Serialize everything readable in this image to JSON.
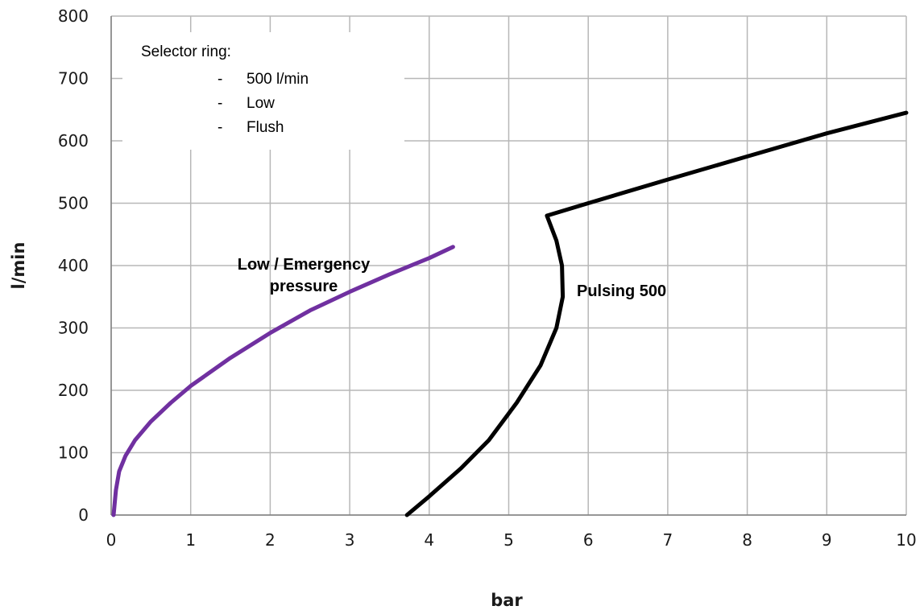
{
  "chart_data": {
    "type": "line",
    "xlabel": "bar",
    "ylabel": "l/min",
    "xlim": [
      0,
      10
    ],
    "ylim": [
      0,
      800
    ],
    "x_ticks": [
      "0",
      "1",
      "2",
      "3",
      "4",
      "5",
      "6",
      "7",
      "8",
      "9",
      "10"
    ],
    "y_ticks": [
      "0",
      "100",
      "200",
      "300",
      "400",
      "500",
      "600",
      "700",
      "800"
    ],
    "grid": true,
    "series": [
      {
        "name": "Low / Emergency pressure",
        "color": "#7030a0",
        "points": [
          [
            0.03,
            0
          ],
          [
            0.06,
            40
          ],
          [
            0.1,
            70
          ],
          [
            0.18,
            95
          ],
          [
            0.3,
            120
          ],
          [
            0.5,
            150
          ],
          [
            0.75,
            180
          ],
          [
            1.0,
            207
          ],
          [
            1.5,
            252
          ],
          [
            2.0,
            292
          ],
          [
            2.5,
            328
          ],
          [
            3.0,
            358
          ],
          [
            3.5,
            386
          ],
          [
            4.0,
            412
          ],
          [
            4.3,
            430
          ]
        ]
      },
      {
        "name": "Pulsing 500",
        "color": "#000000",
        "points": [
          [
            3.72,
            0
          ],
          [
            4.0,
            30
          ],
          [
            4.4,
            75
          ],
          [
            4.75,
            120
          ],
          [
            5.1,
            180
          ],
          [
            5.4,
            240
          ],
          [
            5.6,
            300
          ],
          [
            5.68,
            350
          ],
          [
            5.67,
            400
          ],
          [
            5.6,
            440
          ],
          [
            5.48,
            480
          ],
          [
            6.0,
            500
          ],
          [
            7.0,
            538
          ],
          [
            8.0,
            575
          ],
          [
            9.0,
            612
          ],
          [
            10.0,
            645
          ]
        ]
      }
    ],
    "annotations": {
      "low_label_line1": "Low / Emergency",
      "low_label_line2": "pressure",
      "pulsing_label": "Pulsing 500"
    },
    "legend": {
      "title": "Selector ring:",
      "items": [
        {
          "bullet": "-",
          "text": "500 l/min"
        },
        {
          "bullet": "-",
          "text": "Low"
        },
        {
          "bullet": "-",
          "text": "Flush"
        }
      ]
    }
  }
}
